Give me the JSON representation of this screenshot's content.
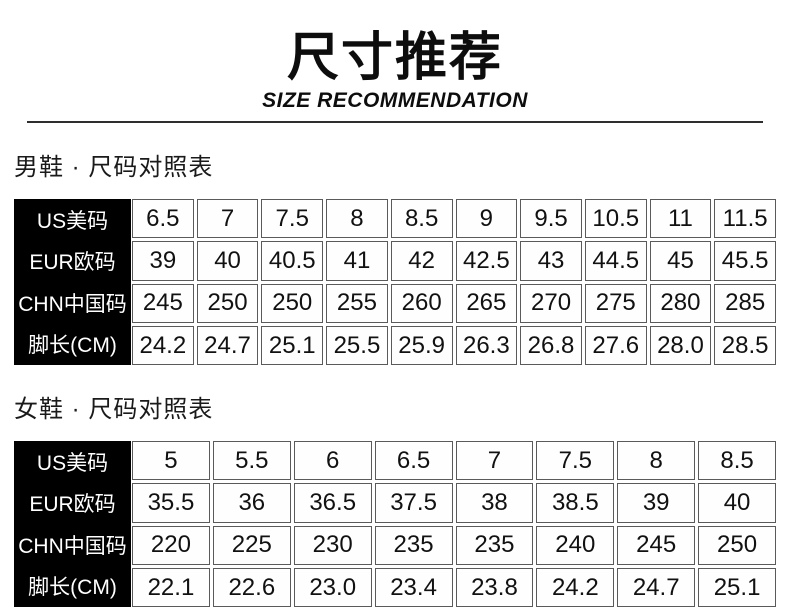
{
  "page": {
    "title": "尺寸推荐",
    "subtitle": "SIZE RECOMMENDATION"
  },
  "colors": {
    "label_background": "#000000",
    "label_text": "#ffffff",
    "cell_border": "#5a5a5a",
    "text": "#111111"
  },
  "sections": [
    {
      "heading": "男鞋 · 尺码对照表",
      "row_labels": [
        "US美码",
        "EUR欧码",
        "CHN中国码",
        "脚长(CM)"
      ],
      "rows": [
        [
          "6.5",
          "7",
          "7.5",
          "8",
          "8.5",
          "9",
          "9.5",
          "10.5",
          "11",
          "11.5"
        ],
        [
          "39",
          "40",
          "40.5",
          "41",
          "42",
          "42.5",
          "43",
          "44.5",
          "45",
          "45.5"
        ],
        [
          "245",
          "250",
          "250",
          "255",
          "260",
          "265",
          "270",
          "275",
          "280",
          "285"
        ],
        [
          "24.2",
          "24.7",
          "25.1",
          "25.5",
          "25.9",
          "26.3",
          "26.8",
          "27.6",
          "28.0",
          "28.5"
        ]
      ]
    },
    {
      "heading": "女鞋 · 尺码对照表",
      "row_labels": [
        "US美码",
        "EUR欧码",
        "CHN中国码",
        "脚长(CM)"
      ],
      "rows": [
        [
          "5",
          "5.5",
          "6",
          "6.5",
          "7",
          "7.5",
          "8",
          "8.5"
        ],
        [
          "35.5",
          "36",
          "36.5",
          "37.5",
          "38",
          "38.5",
          "39",
          "40"
        ],
        [
          "220",
          "225",
          "230",
          "235",
          "235",
          "240",
          "245",
          "250"
        ],
        [
          "22.1",
          "22.6",
          "23.0",
          "23.4",
          "23.8",
          "24.2",
          "24.7",
          "25.1"
        ]
      ]
    }
  ]
}
